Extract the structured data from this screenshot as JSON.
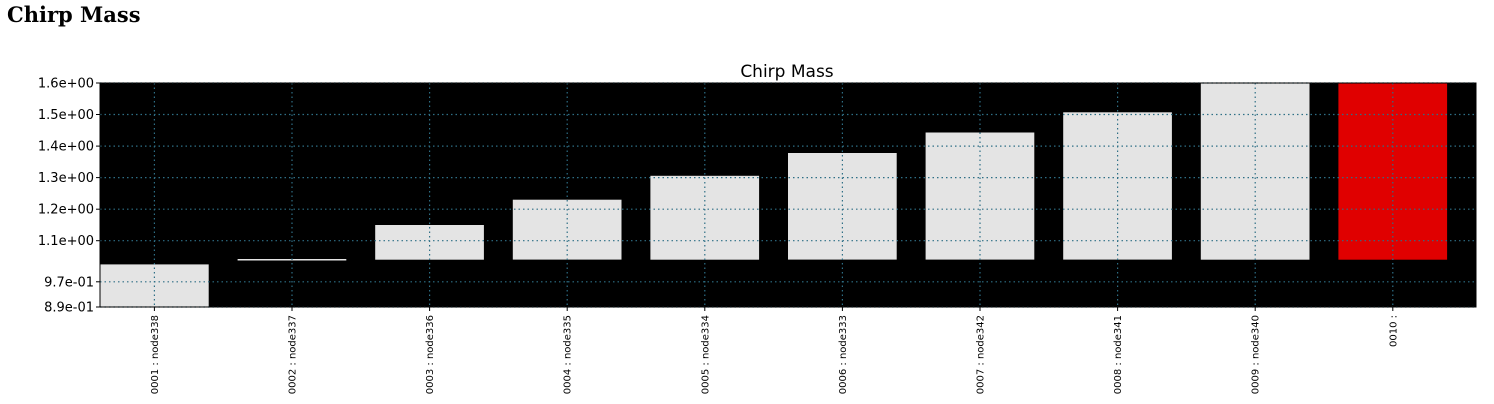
{
  "page": {
    "heading": "Chirp Mass"
  },
  "chart_data": {
    "type": "bar",
    "title": "Chirp Mass",
    "categories": [
      "0001 : node338",
      "0002 : node337",
      "0003 : node336",
      "0004 : node335",
      "0005 : node334",
      "0006 : node333",
      "0007 : node342",
      "0008 : node341",
      "0009 : node340",
      "0010 :"
    ],
    "bars": [
      {
        "bottom": 0.89,
        "top": 1.025
      },
      {
        "bottom": 1.038,
        "top": 1.042
      },
      {
        "bottom": 1.04,
        "top": 1.15
      },
      {
        "bottom": 1.04,
        "top": 1.23
      },
      {
        "bottom": 1.04,
        "top": 1.306
      },
      {
        "bottom": 1.04,
        "top": 1.378
      },
      {
        "bottom": 1.04,
        "top": 1.443
      },
      {
        "bottom": 1.04,
        "top": 1.507
      },
      {
        "bottom": 1.04,
        "top": 1.6
      },
      {
        "bottom": 1.04,
        "top": 1.6
      }
    ],
    "ylim": [
      0.89,
      1.6
    ],
    "yticks": [
      {
        "value": 0.89,
        "label": "8.9e-01"
      },
      {
        "value": 0.97,
        "label": "9.7e-01"
      },
      {
        "value": 1.1,
        "label": "1.1e+00"
      },
      {
        "value": 1.2,
        "label": "1.2e+00"
      },
      {
        "value": 1.3,
        "label": "1.3e+00"
      },
      {
        "value": 1.4,
        "label": "1.4e+00"
      },
      {
        "value": 1.5,
        "label": "1.5e+00"
      },
      {
        "value": 1.6,
        "label": "1.6e+00"
      }
    ],
    "grid": true,
    "xlabel": "",
    "ylabel": "",
    "colors": {
      "background": "#000000",
      "bar": "#e4e4e4",
      "highlight": "#e00000",
      "grid": "#2e6f86"
    },
    "highlight_index": 9
  }
}
